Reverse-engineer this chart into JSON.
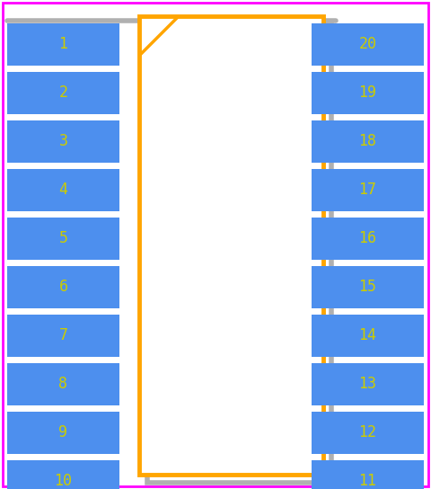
{
  "bg_color": "#ffffff",
  "border_color": "#ff00ff",
  "body_border_color": "#ffa500",
  "body_fill_color": "#ffffff",
  "body_shadow_color": "#b0b0b0",
  "pin_color": "#4d8fee",
  "pin_text_color": "#cccc00",
  "notch_color": "#ffa500",
  "left_pins": [
    1,
    2,
    3,
    4,
    5,
    6,
    7,
    8,
    9,
    10
  ],
  "right_pins": [
    20,
    19,
    18,
    17,
    16,
    15,
    14,
    13,
    12,
    11
  ],
  "fig_width": 4.8,
  "fig_height": 5.44,
  "dpi": 100,
  "font_size": 12
}
